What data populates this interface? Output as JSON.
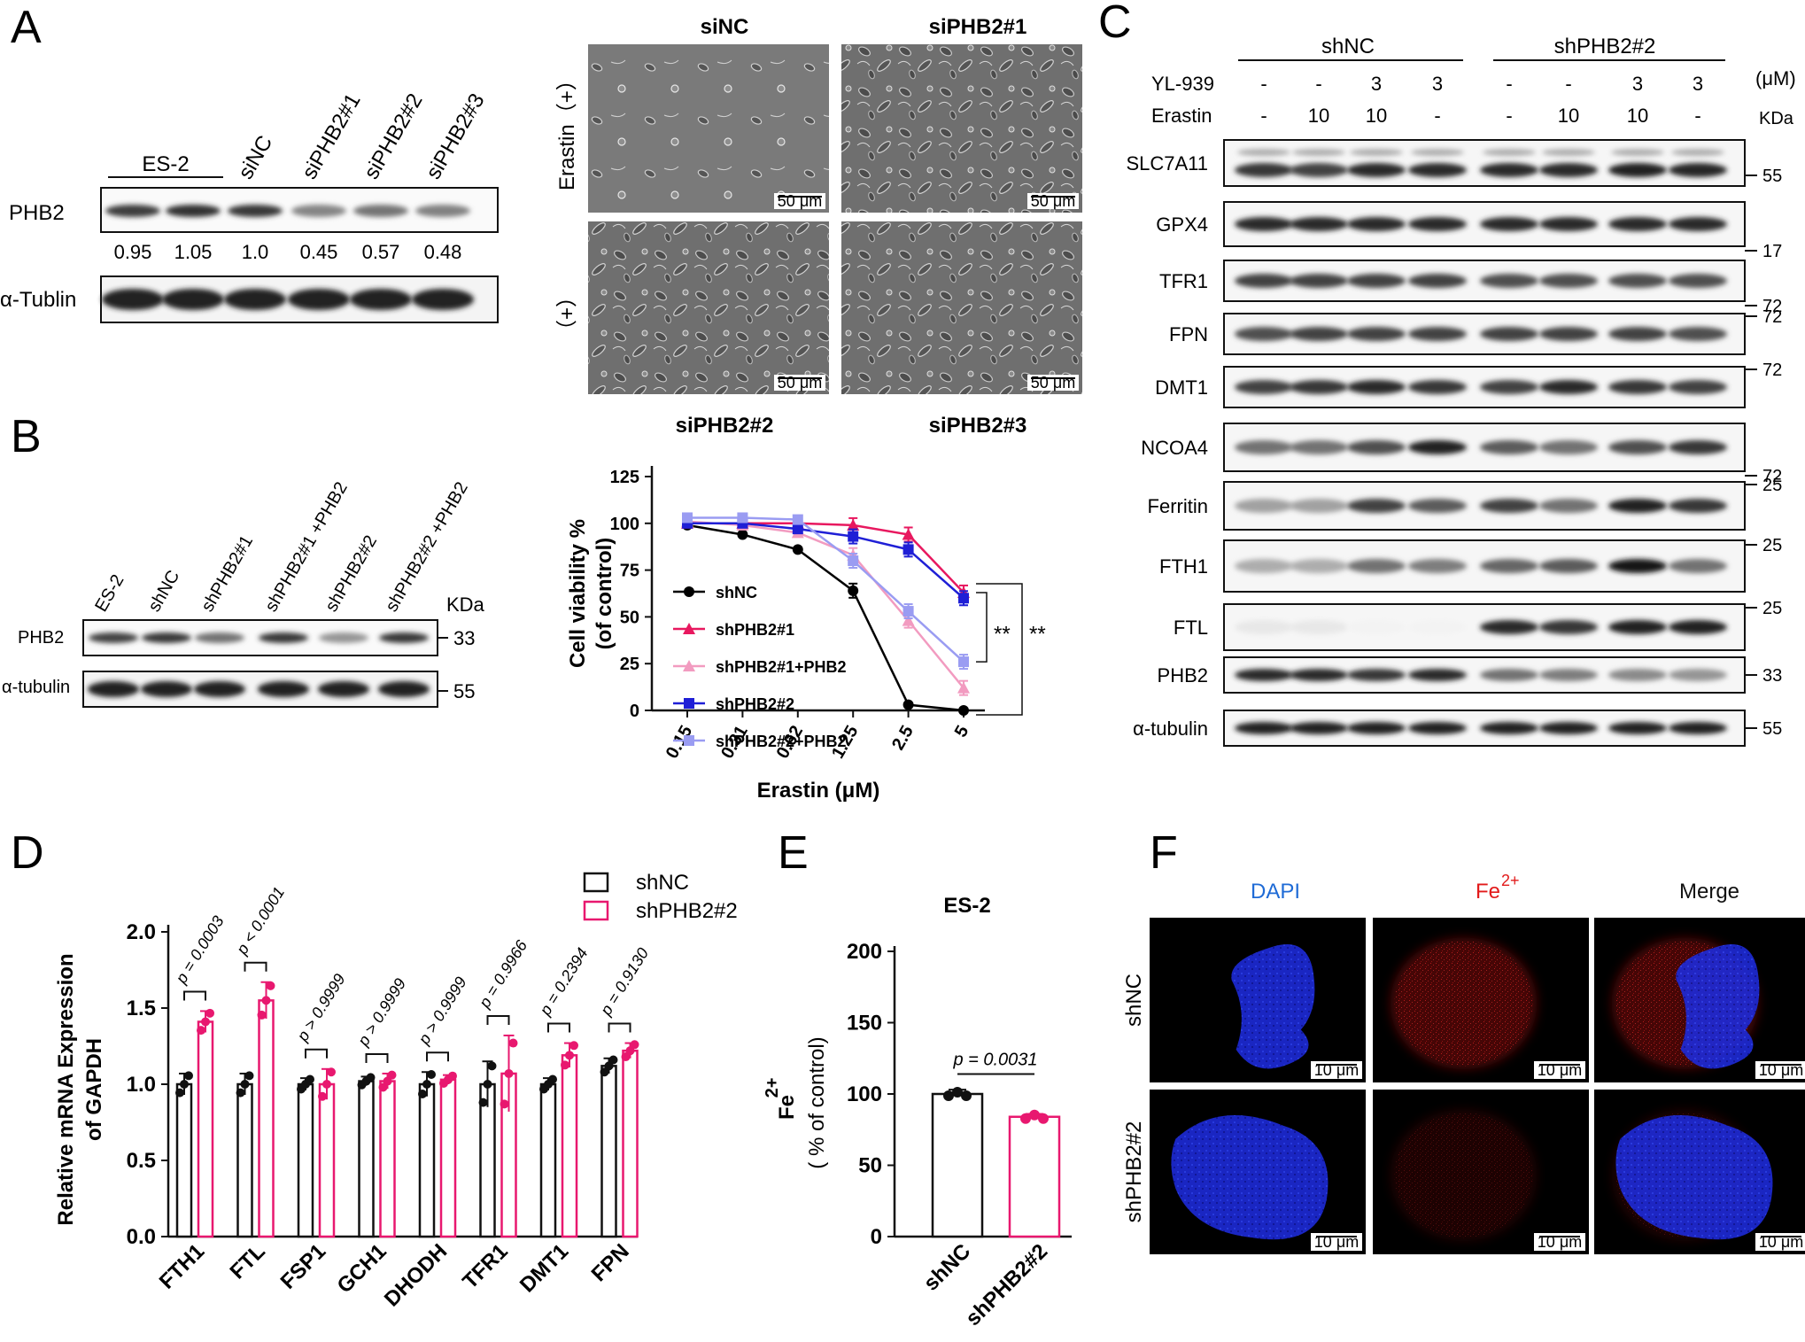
{
  "colors": {
    "shNC": "#000000",
    "shPHB2_1": "#e8185f",
    "shPHB2_1_PHB2": "#f29bc0",
    "shPHB2_2": "#1f1fd6",
    "shPHB2_2_PHB2": "#9a9cf2",
    "pink": "#e8186f",
    "dapi": "#1f6bd6",
    "fe": "#e21a1a"
  },
  "panelA": {
    "label": "A",
    "group_label": "ES-2",
    "lane_labels": [
      "siNC",
      "siPHB2#1",
      "siPHB2#2",
      "siPHB2#3"
    ],
    "rows": [
      "PHB2",
      "α-Tublin"
    ],
    "ratios": [
      "0.95",
      "1.05",
      "1.0",
      "0.45",
      "0.57",
      "0.48"
    ],
    "band_intensity": [
      0.95,
      1.05,
      1.0,
      0.45,
      0.57,
      0.48
    ],
    "micro_titles": [
      "siNC",
      "siPHB2#1",
      "siPHB2#2",
      "siPHB2#3"
    ],
    "side_label": "Erastin（+）",
    "side_label_2": "（+）",
    "scale_bar": "50 μm"
  },
  "panelB": {
    "label": "B",
    "lane_labels": [
      "ES-2",
      "shNC",
      "shPHB2#1",
      "shPHB2#1 +PHB2",
      "shPHB2#2",
      "shPHB2#2 +PHB2"
    ],
    "rows": [
      "PHB2",
      "α-tubulin"
    ],
    "kda_label": "KDa",
    "kda": [
      "33",
      "55"
    ],
    "sig": "**"
  },
  "chart_data": {
    "type": "line",
    "xlabel": "Erastin (μM)",
    "ylabel_line1": "Cell viability %",
    "ylabel_line2": "(of control)",
    "categories": [
      "0.15",
      "0.31",
      "0.62",
      "1.25",
      "2.5",
      "5"
    ],
    "ylim": [
      0,
      125
    ],
    "yticks": [
      "0",
      "25",
      "50",
      "75",
      "100",
      "125"
    ],
    "series": [
      {
        "name": "shNC",
        "color": "#000000",
        "marker": "circle",
        "values": [
          99,
          94,
          86,
          64,
          3,
          0
        ]
      },
      {
        "name": "shPHB2#1",
        "color": "#e8185f",
        "marker": "triangle",
        "values": [
          100,
          100,
          100,
          99,
          94,
          63
        ]
      },
      {
        "name": "shPHB2#1+PHB2",
        "color": "#f29bc0",
        "marker": "triangle",
        "values": [
          101,
          99,
          95,
          83,
          48,
          12
        ]
      },
      {
        "name": "shPHB2#2",
        "color": "#1f1fd6",
        "marker": "square",
        "values": [
          100,
          100,
          97,
          93,
          86,
          60
        ]
      },
      {
        "name": "shPHB2#2+PHB2",
        "color": "#9a9cf2",
        "marker": "square",
        "values": [
          103,
          103,
          102,
          80,
          53,
          26
        ]
      }
    ]
  },
  "panelC": {
    "label": "C",
    "groups": [
      "shNC",
      "shPHB2#2"
    ],
    "treat_rows": [
      {
        "name": "YL-939",
        "values": [
          "-",
          "-",
          "3",
          "3",
          "-",
          "-",
          "3",
          "3"
        ]
      },
      {
        "name": "Erastin",
        "values": [
          "-",
          "10",
          "10",
          "-",
          "-",
          "10",
          "10",
          "-"
        ]
      }
    ],
    "unit": "(μM)",
    "kda_label": "KDa",
    "proteins": [
      {
        "name": "SLC7A11",
        "kda": "55"
      },
      {
        "name": "GPX4",
        "kda": "17"
      },
      {
        "name": "TFR1",
        "kda": "72"
      },
      {
        "name": "FPN",
        "kda": "72"
      },
      {
        "name": "DMT1",
        "kda": "72"
      },
      {
        "name": "NCOA4",
        "kda": "72"
      },
      {
        "name": "Ferritin",
        "kda": "25"
      },
      {
        "name": "FTH1",
        "kda": "25"
      },
      {
        "name": "FTL",
        "kda": "25"
      },
      {
        "name": "PHB2",
        "kda": "33"
      },
      {
        "name": "α-tubulin",
        "kda": "55"
      }
    ]
  },
  "panelD": {
    "label": "D",
    "ylabel_line1": "Relative mRNA Expression",
    "ylabel_line2": "of GAPDH",
    "yticks": [
      "0.0",
      "0.5",
      "1.0",
      "1.5",
      "2.0"
    ],
    "ylim": [
      0,
      2.0
    ],
    "legend": [
      "shNC",
      "shPHB2#2"
    ],
    "genes": [
      "FTH1",
      "FTL",
      "FSP1",
      "GCH1",
      "DHODH",
      "TFR1",
      "DMT1",
      "FPN"
    ],
    "shNC": [
      1.0,
      1.0,
      1.0,
      1.02,
      1.0,
      1.0,
      1.0,
      1.12
    ],
    "shNC_err": [
      0.07,
      0.07,
      0.04,
      0.03,
      0.08,
      0.15,
      0.04,
      0.05
    ],
    "shPHB2": [
      1.41,
      1.55,
      1.0,
      1.02,
      1.03,
      1.07,
      1.19,
      1.22
    ],
    "shPHB2_err": [
      0.07,
      0.12,
      0.1,
      0.05,
      0.03,
      0.25,
      0.08,
      0.05
    ],
    "p_values": [
      "p = 0.0003",
      "p < 0.0001",
      "p > 0.9999",
      "p > 0.9999",
      "p > 0.9999",
      "p = 0.9966",
      "p = 0.2394",
      "p = 0.9130"
    ]
  },
  "panelE": {
    "label": "E",
    "title": "ES-2",
    "ylabel_main": "Fe",
    "ylabel_sup": "2+",
    "ylabel_line2": "( % of control)",
    "yticks": [
      "0",
      "50",
      "100",
      "150",
      "200"
    ],
    "ylim": [
      0,
      200
    ],
    "categories": [
      "shNC",
      "shPHB2#2"
    ],
    "values": [
      100,
      84
    ],
    "errors": [
      3,
      2
    ],
    "p_value": "p = 0.0031"
  },
  "panelF": {
    "label": "F",
    "columns": [
      "DAPI",
      "Fe",
      "Merge"
    ],
    "fe_sup": "2+",
    "rows": [
      "shNC",
      "shPHB2#2"
    ],
    "scale_bar": "10 μm"
  }
}
